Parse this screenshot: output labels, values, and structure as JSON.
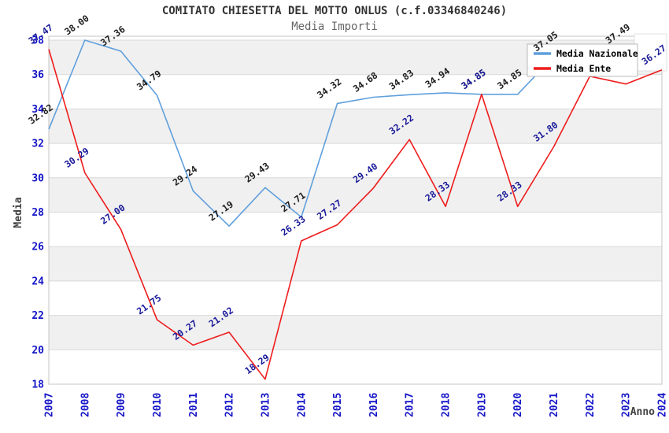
{
  "title": "COMITATO CHIESETTA DEL MOTTO ONLUS (c.f.03346840246)",
  "subtitle": "Media Importi",
  "colors": {
    "nazionale_line": "#5f9fdc",
    "ente_line": "#ee1c1c",
    "nazionale_label_text": "#1c1c1c",
    "ente_label_text": "#181899",
    "axis_tick_text": "#1515c8",
    "axis_title_text": "#404040",
    "band_gray": "#f0f0f0",
    "gridline": "#d9d9d9",
    "plot_border": "#c4c4c4",
    "legend_bg": "#ffffff",
    "legend_border": "#b8b8b8",
    "legend_text": "#000000"
  },
  "legend": {
    "items": [
      {
        "label": "Media Nazionale",
        "color": "#5f9fdc"
      },
      {
        "label": "Media Ente",
        "color": "#ee1c1c"
      }
    ],
    "position": "top-right-overlay"
  },
  "chart_data": {
    "type": "line",
    "title": "COMITATO CHIESETTA DEL MOTTO ONLUS (c.f.03346840246)",
    "subtitle": "Media Importi",
    "xlabel": "Anno",
    "ylabel": "Media",
    "ylim": [
      18,
      38
    ],
    "y_ticks": [
      18,
      20,
      22,
      24,
      26,
      28,
      30,
      32,
      34,
      36,
      38
    ],
    "grid": "horizontal gridlines every 2 units; alternating light-gray bands on 20-22, 24-26, 28-30, 32-34, 36-38",
    "legend_position": "top-right overlaying plot",
    "x": [
      2007,
      2008,
      2009,
      2010,
      2011,
      2012,
      2013,
      2014,
      2015,
      2016,
      2017,
      2018,
      2019,
      2020,
      2021,
      2022,
      2023,
      2024
    ],
    "series": [
      {
        "name": "Media Nazionale",
        "color": "#5f9fdc",
        "label_color": "#1c1c1c",
        "values": [
          32.82,
          38.0,
          37.36,
          34.79,
          29.24,
          27.19,
          29.43,
          27.71,
          34.32,
          34.68,
          34.83,
          34.94,
          34.85,
          34.85,
          37.05,
          37.3,
          37.49,
          null
        ],
        "labels_hidden_years": [
          2022
        ],
        "note": "2022 value label hidden behind legend (approx 37.3 estimated); no 2024 point shown"
      },
      {
        "name": "Media Ente",
        "color": "#ee1c1c",
        "label_color": "#181899",
        "values": [
          37.47,
          30.29,
          27.0,
          21.75,
          20.27,
          21.02,
          18.29,
          26.33,
          27.27,
          29.4,
          32.22,
          28.33,
          34.85,
          28.33,
          31.8,
          35.9,
          35.45,
          36.27
        ],
        "labels_hidden_years": [
          2022,
          2023
        ],
        "note": "2022 and 2023 points pass behind legend box, values estimated from line position"
      }
    ],
    "annotations": "At 2019 both series equal 34.85 and the value labels overlap (appears bold dark blue)"
  }
}
